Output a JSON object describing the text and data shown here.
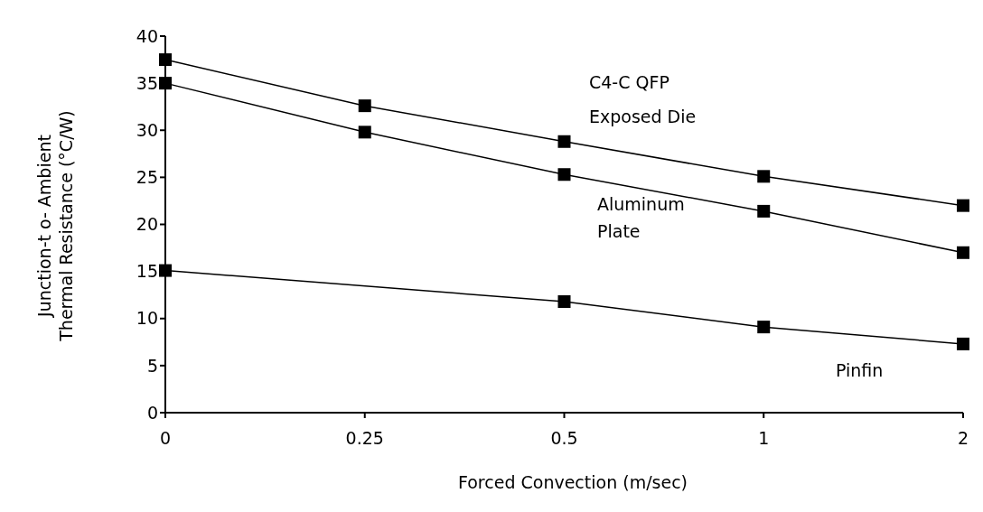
{
  "chart_data": {
    "type": "line",
    "xlabel": "Forced Convection (m/sec)",
    "ylabel": "Junction-t o- Ambient\nThermal Resistance (°C/W)",
    "categories": [
      "0",
      "0.25",
      "0.5",
      "1",
      "2"
    ],
    "series": [
      {
        "name": "Exposed Die",
        "color": "#000000",
        "values": [
          37.5,
          32.6,
          28.8,
          25.1,
          22
        ]
      },
      {
        "name": "Aluminum Plate",
        "color": "#000000",
        "values": [
          35,
          29.8,
          25.3,
          21.4,
          17
        ]
      },
      {
        "name": "Pinfin",
        "color": "#000000",
        "values": [
          15.1,
          null,
          11.8,
          9.1,
          7.3
        ]
      }
    ],
    "annotations": [
      "C4-C QFP"
    ],
    "ylim": [
      0,
      40
    ],
    "yticks": [
      0,
      5,
      10,
      15,
      20,
      25,
      30,
      35,
      40
    ],
    "grid": false,
    "legend": false,
    "marker": "square",
    "line_style": "solid"
  }
}
